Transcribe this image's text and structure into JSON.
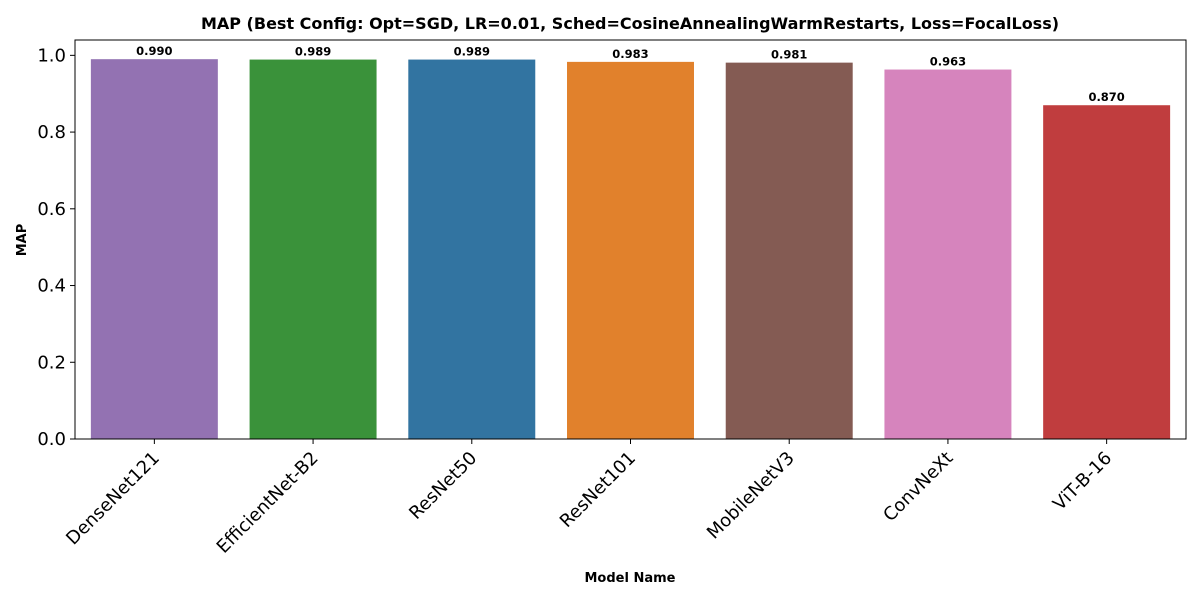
{
  "chart_data": {
    "type": "bar",
    "title": "MAP (Best Config: Opt=SGD, LR=0.01, Sched=CosineAnnealingWarmRestarts, Loss=FocalLoss)",
    "xlabel": "Model Name",
    "ylabel": "MAP",
    "categories": [
      "DenseNet121",
      "EfficientNet-B2",
      "ResNet50",
      "ResNet101",
      "MobileNetV3",
      "ConvNeXt",
      "ViT-B-16"
    ],
    "values": [
      0.99,
      0.989,
      0.989,
      0.983,
      0.981,
      0.963,
      0.87
    ],
    "value_labels": [
      "0.990",
      "0.989",
      "0.989",
      "0.983",
      "0.981",
      "0.963",
      "0.870"
    ],
    "colors": [
      "#9372b2",
      "#3a923a",
      "#3274a1",
      "#e1812c",
      "#845b53",
      "#d684bd",
      "#c03d3e"
    ],
    "ylim": [
      0,
      1.04
    ],
    "yticks": [
      0.0,
      0.2,
      0.4,
      0.6,
      0.8,
      1.0
    ],
    "ytick_labels": [
      "0.0",
      "0.2",
      "0.4",
      "0.6",
      "0.8",
      "1.0"
    ],
    "grid": false,
    "legend": "none"
  }
}
